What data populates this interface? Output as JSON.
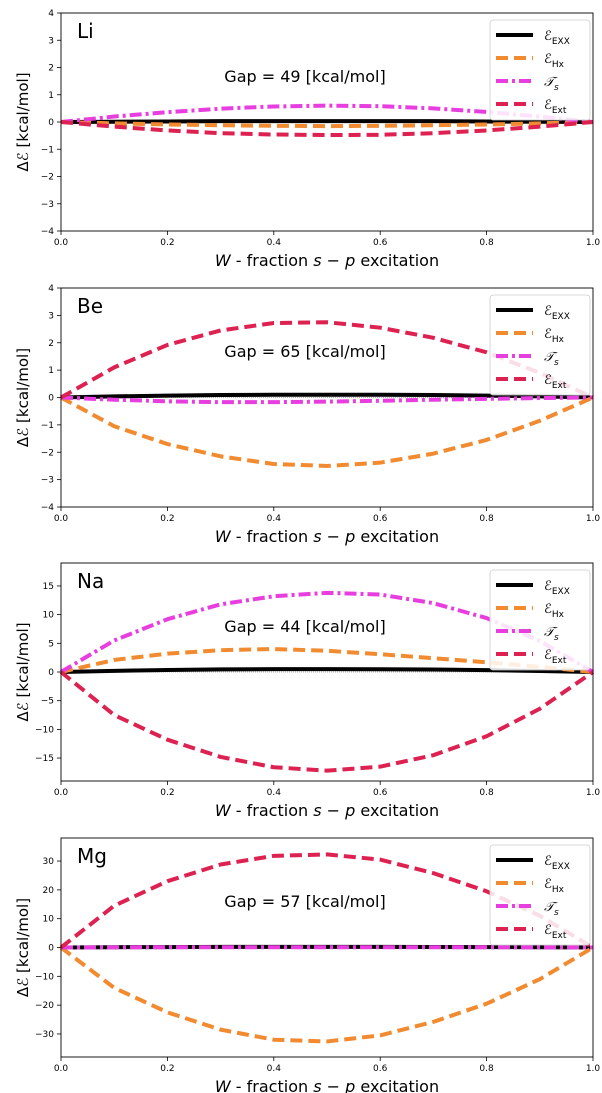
{
  "chart_data": [
    {
      "type": "line",
      "panel_label": "Li",
      "annotation": "Gap = 49 [kcal/mol]",
      "xlabel_var": "W",
      "xlabel_mid": " - fraction ",
      "xlabel_tail": " excitation",
      "xlabel_s": "s",
      "xlabel_minus": " − ",
      "xlabel_p": "p",
      "ylabel_delta": "Δℰ",
      "ylabel_unit": " [kcal/mol]",
      "xlim": [
        0,
        1
      ],
      "ylim": [
        -4,
        4
      ],
      "xticks": [
        "0.0",
        "0.2",
        "0.4",
        "0.6",
        "0.8",
        "1.0"
      ],
      "yticks": [
        -4,
        -3,
        -2,
        -1,
        0,
        1,
        2,
        3,
        4
      ],
      "x": [
        0,
        0.1,
        0.2,
        0.3,
        0.4,
        0.5,
        0.6,
        0.7,
        0.8,
        0.9,
        1.0
      ],
      "legend_position": "top-right",
      "series": [
        {
          "name": "ℰ",
          "sub": "EXX",
          "color": "#000000",
          "dash": "solid",
          "values": [
            0,
            0.01,
            0.02,
            0.03,
            0.03,
            0.03,
            0.03,
            0.03,
            0.02,
            0.01,
            0
          ]
        },
        {
          "name": "ℰ",
          "sub": "Hx",
          "color": "#f28a30",
          "dash": "dashed",
          "values": [
            0,
            -0.05,
            -0.09,
            -0.12,
            -0.14,
            -0.15,
            -0.14,
            -0.12,
            -0.09,
            -0.05,
            0
          ]
        },
        {
          "name": "𝒯",
          "sub": "s",
          "color": "#e83ee0",
          "dash": "dashdot",
          "values": [
            0,
            0.2,
            0.36,
            0.49,
            0.57,
            0.6,
            0.58,
            0.5,
            0.37,
            0.2,
            0
          ]
        },
        {
          "name": "ℰ",
          "sub": "Ext",
          "color": "#dd2150",
          "dash": "dashed",
          "values": [
            0,
            -0.17,
            -0.31,
            -0.41,
            -0.46,
            -0.48,
            -0.47,
            -0.41,
            -0.31,
            -0.17,
            0
          ]
        }
      ]
    },
    {
      "type": "line",
      "panel_label": "Be",
      "annotation": "Gap = 65 [kcal/mol]",
      "xlabel_var": "W",
      "xlabel_mid": " - fraction ",
      "xlabel_tail": " excitation",
      "xlabel_s": "s",
      "xlabel_minus": " − ",
      "xlabel_p": "p",
      "ylabel_delta": "Δℰ",
      "ylabel_unit": " [kcal/mol]",
      "xlim": [
        0,
        1
      ],
      "ylim": [
        -4,
        4
      ],
      "xticks": [
        "0.0",
        "0.2",
        "0.4",
        "0.6",
        "0.8",
        "1.0"
      ],
      "yticks": [
        -4,
        -3,
        -2,
        -1,
        0,
        1,
        2,
        3,
        4
      ],
      "x": [
        0,
        0.1,
        0.2,
        0.3,
        0.4,
        0.5,
        0.6,
        0.7,
        0.8,
        0.9,
        1.0
      ],
      "legend_position": "top-right",
      "series": [
        {
          "name": "ℰ",
          "sub": "EXX",
          "color": "#000000",
          "dash": "solid",
          "values": [
            0,
            0.04,
            0.07,
            0.09,
            0.1,
            0.1,
            0.1,
            0.09,
            0.07,
            0.04,
            0
          ]
        },
        {
          "name": "ℰ",
          "sub": "Hx",
          "color": "#f28a30",
          "dash": "dashed",
          "values": [
            0,
            -1.05,
            -1.7,
            -2.15,
            -2.43,
            -2.5,
            -2.38,
            -2.05,
            -1.55,
            -0.85,
            0
          ]
        },
        {
          "name": "𝒯",
          "sub": "s",
          "color": "#e83ee0",
          "dash": "dashdot",
          "values": [
            0,
            -0.08,
            -0.14,
            -0.17,
            -0.17,
            -0.15,
            -0.12,
            -0.08,
            -0.05,
            -0.02,
            0
          ]
        },
        {
          "name": "ℰ",
          "sub": "Ext",
          "color": "#dd2150",
          "dash": "dashed",
          "values": [
            0,
            1.1,
            1.92,
            2.45,
            2.72,
            2.75,
            2.55,
            2.18,
            1.65,
            0.9,
            0
          ]
        }
      ]
    },
    {
      "type": "line",
      "panel_label": "Na",
      "annotation": "Gap = 44 [kcal/mol]",
      "xlabel_var": "W",
      "xlabel_mid": " - fraction ",
      "xlabel_tail": " excitation",
      "xlabel_s": "s",
      "xlabel_minus": " − ",
      "xlabel_p": "p",
      "ylabel_delta": "Δℰ",
      "ylabel_unit": " [kcal/mol]",
      "xlim": [
        0,
        1
      ],
      "ylim": [
        -19,
        19
      ],
      "xticks": [
        "0.0",
        "0.2",
        "0.4",
        "0.6",
        "0.8",
        "1.0"
      ],
      "yticks": [
        -15,
        -10,
        -5,
        0,
        5,
        10,
        15
      ],
      "x": [
        0,
        0.1,
        0.2,
        0.3,
        0.4,
        0.5,
        0.6,
        0.7,
        0.8,
        0.9,
        1.0
      ],
      "legend_position": "top-right",
      "series": [
        {
          "name": "ℰ",
          "sub": "EXX",
          "color": "#000000",
          "dash": "solid",
          "values": [
            0,
            0.2,
            0.35,
            0.45,
            0.5,
            0.5,
            0.48,
            0.43,
            0.33,
            0.18,
            0
          ]
        },
        {
          "name": "ℰ",
          "sub": "Hx",
          "color": "#f28a30",
          "dash": "dashed",
          "values": [
            0,
            2.1,
            3.2,
            3.8,
            4.0,
            3.7,
            3.1,
            2.4,
            1.7,
            0.9,
            0
          ]
        },
        {
          "name": "𝒯",
          "sub": "s",
          "color": "#e83ee0",
          "dash": "dashdot",
          "values": [
            0,
            5.5,
            9.2,
            11.8,
            13.2,
            13.8,
            13.5,
            12.0,
            9.4,
            5.4,
            0
          ]
        },
        {
          "name": "ℰ",
          "sub": "Ext",
          "color": "#dd2150",
          "dash": "dashed",
          "values": [
            0,
            -7.5,
            -11.8,
            -14.8,
            -16.6,
            -17.2,
            -16.5,
            -14.5,
            -11.2,
            -6.4,
            0
          ]
        }
      ]
    },
    {
      "type": "line",
      "panel_label": "Mg",
      "annotation": "Gap = 57 [kcal/mol]",
      "xlabel_var": "W",
      "xlabel_mid": " - fraction ",
      "xlabel_tail": " excitation",
      "xlabel_s": "s",
      "xlabel_minus": " − ",
      "xlabel_p": "p",
      "ylabel_delta": "Δℰ",
      "ylabel_unit": " [kcal/mol]",
      "xlim": [
        0,
        1
      ],
      "ylim": [
        -38,
        38
      ],
      "xticks": [
        "0.0",
        "0.2",
        "0.4",
        "0.6",
        "0.8",
        "1.0"
      ],
      "yticks": [
        -30,
        -20,
        -10,
        0,
        10,
        20,
        30
      ],
      "x": [
        0,
        0.1,
        0.2,
        0.3,
        0.4,
        0.5,
        0.6,
        0.7,
        0.8,
        0.9,
        1.0
      ],
      "legend_position": "top-right",
      "series": [
        {
          "name": "ℰ",
          "sub": "EXX",
          "color": "#000000",
          "dash": "solid",
          "values": [
            0,
            0.1,
            0.15,
            0.2,
            0.2,
            0.2,
            0.2,
            0.18,
            0.15,
            0.08,
            0
          ]
        },
        {
          "name": "ℰ",
          "sub": "Hx",
          "color": "#f28a30",
          "dash": "dashed",
          "values": [
            0,
            -14.0,
            -22.5,
            -28.5,
            -32.0,
            -32.6,
            -30.5,
            -25.8,
            -19.5,
            -11.0,
            0
          ]
        },
        {
          "name": "𝒯",
          "sub": "s",
          "color": "#e83ee0",
          "dash": "dashdot",
          "values": [
            0,
            0.05,
            0.1,
            0.1,
            0.1,
            0.1,
            0.1,
            0.1,
            0.08,
            0.05,
            0
          ]
        },
        {
          "name": "ℰ",
          "sub": "Ext",
          "color": "#dd2150",
          "dash": "dashed",
          "values": [
            0,
            14.5,
            23.0,
            28.8,
            31.8,
            32.3,
            30.5,
            25.8,
            19.5,
            11.0,
            0
          ]
        }
      ]
    }
  ]
}
